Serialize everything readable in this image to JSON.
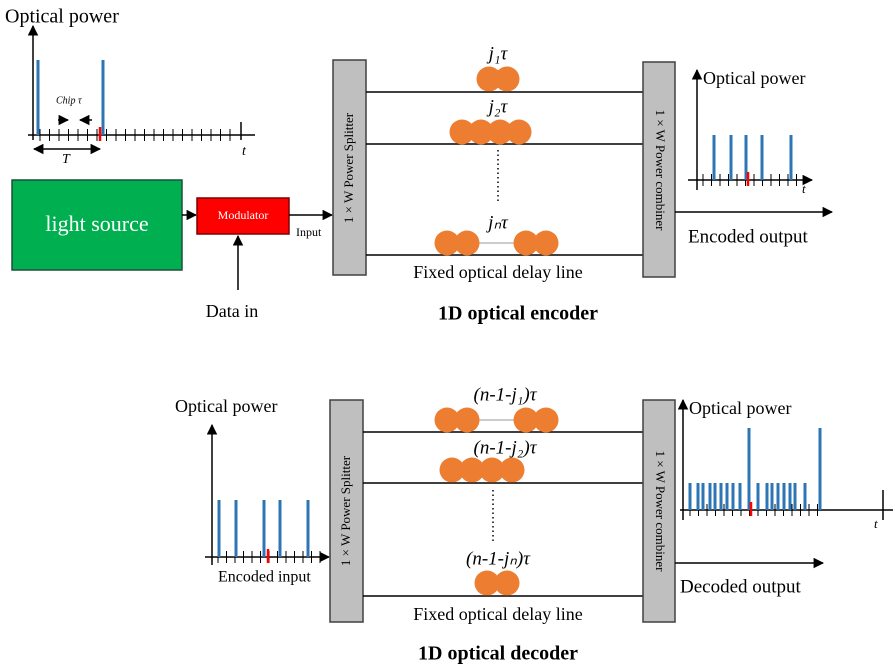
{
  "encoder": {
    "input_graph": {
      "y_label": "Optical power",
      "chip_label": "Chip τ",
      "period_label": "T",
      "time_label": "t"
    },
    "light_source": "light source",
    "modulator": "Modulator",
    "input_label": "Input",
    "data_in": "Data in",
    "splitter": "1 × W  Power Splitter",
    "delays": [
      "j₁τ",
      "j₂τ",
      "jₙτ"
    ],
    "combiner": "1 × W  Power combiner",
    "output_graph": {
      "y_label": "Optical power",
      "time_label": "t"
    },
    "output_label": "Encoded output",
    "delay_line_label": "Fixed optical delay line",
    "title": "1D optical encoder"
  },
  "decoder": {
    "input_graph": {
      "y_label": "Optical power"
    },
    "input_label": "Encoded input",
    "splitter": "1 × W  Power Splitter",
    "delays": [
      "(n-1-j₁)τ",
      "(n-1-j₂)τ",
      "(n-1-jₙ)τ"
    ],
    "combiner": "1 × W  Power combiner",
    "output_graph": {
      "y_label": "Optical power",
      "time_label": "t"
    },
    "output_label": "Decoded output",
    "delay_line_label": "Fixed optical delay line",
    "title": "1D optical decoder"
  }
}
